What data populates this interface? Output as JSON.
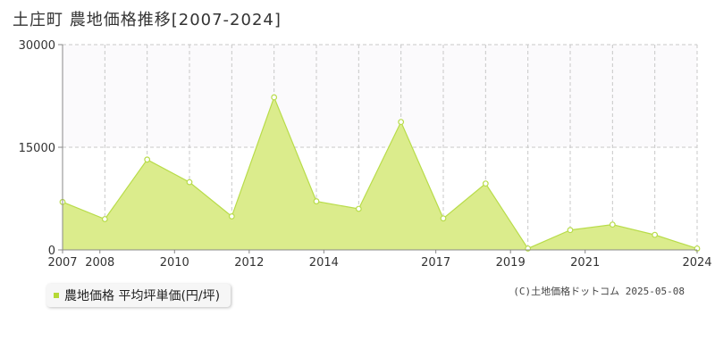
{
  "title": "土庄町 農地価格推移[2007-2024]",
  "legend": {
    "label": "農地価格 平均坪単価(円/坪)"
  },
  "copyright": "(C)土地価格ドットコム 2025-05-08",
  "colors": {
    "fill": "#dbec8c",
    "line": "#b8dc4a",
    "grid": "#c8c8c8",
    "axis": "#888888",
    "upper_band": "#fbfafc"
  },
  "chart_data": {
    "type": "area",
    "x_range": [
      2007,
      2024
    ],
    "ylim": [
      0,
      30000
    ],
    "y_ticks": [
      0,
      15000,
      30000
    ],
    "y_tick_labels": [
      "0",
      "15000",
      "30000"
    ],
    "x_tick_labels": [
      "2007",
      "2008",
      "2010",
      "2012",
      "2014",
      "2017",
      "2019",
      "2021",
      "2024"
    ],
    "grid": true,
    "series": [
      {
        "values": [
          {
            "x": 2007.0,
            "y": 7000
          },
          {
            "x": 2008.0,
            "y": 4500
          },
          {
            "x": 2009.0,
            "y": 13200
          },
          {
            "x": 2010.0,
            "y": 9900
          },
          {
            "x": 2011.0,
            "y": 4900
          },
          {
            "x": 2012.0,
            "y": 22300
          },
          {
            "x": 2013.0,
            "y": 7100
          },
          {
            "x": 2014.0,
            "y": 6000
          },
          {
            "x": 2015.0,
            "y": 18700
          },
          {
            "x": 2016.0,
            "y": 4600
          },
          {
            "x": 2017.0,
            "y": 9700
          },
          {
            "x": 2018.0,
            "y": 200
          },
          {
            "x": 2019.0,
            "y": 2900
          },
          {
            "x": 2020.0,
            "y": 3700
          },
          {
            "x": 2021.0,
            "y": 2200
          },
          {
            "x": 2022.0,
            "y": 200
          }
        ]
      }
    ]
  }
}
